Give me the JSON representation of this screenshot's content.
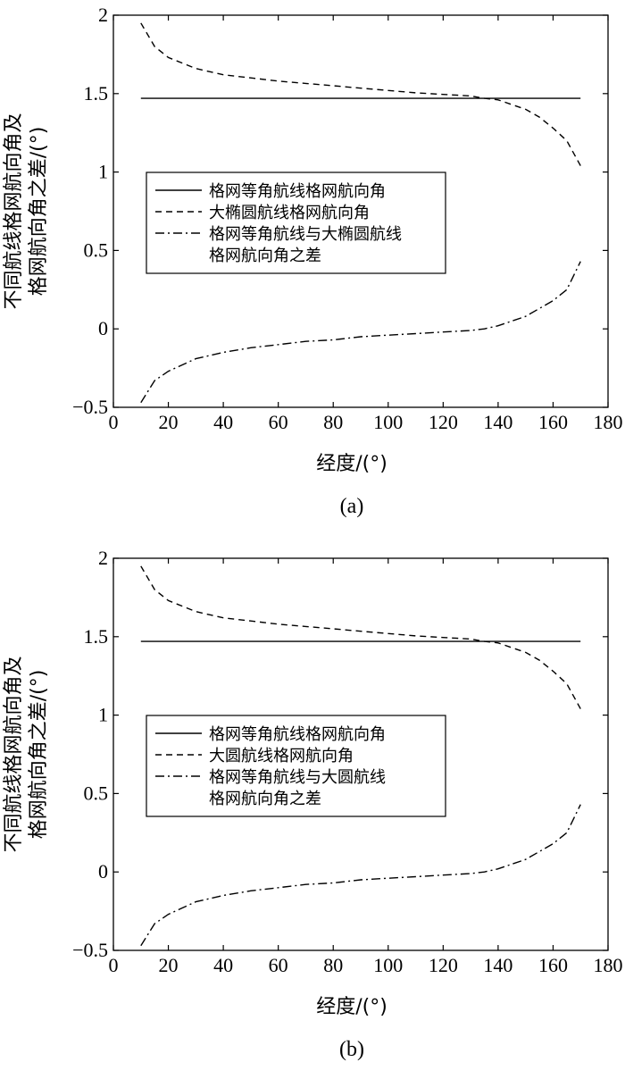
{
  "chart_data": [
    {
      "type": "line",
      "caption": "(a)",
      "xlabel": "经度/(°)",
      "ylabel": [
        "不同航线格网航向角及",
        "格网航向角之差/(°)"
      ],
      "xlim": [
        0,
        180
      ],
      "ylim": [
        -0.5,
        2
      ],
      "xticks": [
        0,
        20,
        40,
        60,
        80,
        100,
        120,
        140,
        160,
        180
      ],
      "yticks": [
        -0.5,
        0,
        0.5,
        1,
        1.5,
        2
      ],
      "ytick_labels": [
        "−0.5",
        "0",
        "0.5",
        "1",
        "1.5",
        "2"
      ],
      "grid": false,
      "legend_position": "center-left",
      "series": [
        {
          "name": [
            "格网等角航线格网航向角"
          ],
          "style": "solid",
          "x": [
            10,
            170
          ],
          "y": [
            1.47,
            1.47
          ]
        },
        {
          "name": [
            "大椭圆航线格网航向角"
          ],
          "style": "dashed",
          "x": [
            10,
            15,
            20,
            30,
            40,
            50,
            60,
            70,
            80,
            90,
            100,
            110,
            120,
            130,
            135,
            140,
            150,
            155,
            160,
            165,
            170
          ],
          "y": [
            1.95,
            1.8,
            1.73,
            1.66,
            1.62,
            1.6,
            1.58,
            1.565,
            1.55,
            1.535,
            1.52,
            1.505,
            1.495,
            1.485,
            1.47,
            1.46,
            1.4,
            1.35,
            1.28,
            1.2,
            1.04
          ]
        },
        {
          "name": [
            "格网等角航线与大椭圆航线",
            "格网航向角之差"
          ],
          "style": "dashdot",
          "x": [
            10,
            15,
            20,
            30,
            40,
            50,
            60,
            70,
            80,
            90,
            100,
            110,
            120,
            130,
            135,
            140,
            150,
            160,
            165,
            170
          ],
          "y": [
            -0.47,
            -0.33,
            -0.27,
            -0.19,
            -0.15,
            -0.12,
            -0.1,
            -0.08,
            -0.07,
            -0.05,
            -0.04,
            -0.03,
            -0.02,
            -0.01,
            0.0,
            0.02,
            0.08,
            0.18,
            0.25,
            0.43
          ]
        }
      ]
    },
    {
      "type": "line",
      "caption": "(b)",
      "xlabel": "经度/(°)",
      "ylabel": [
        "不同航线格网航向角及",
        "格网航向角之差/(°)"
      ],
      "xlim": [
        0,
        180
      ],
      "ylim": [
        -0.5,
        2
      ],
      "xticks": [
        0,
        20,
        40,
        60,
        80,
        100,
        120,
        140,
        160,
        180
      ],
      "yticks": [
        -0.5,
        0,
        0.5,
        1,
        1.5,
        2
      ],
      "ytick_labels": [
        "−0.5",
        "0",
        "0.5",
        "1",
        "1.5",
        "2"
      ],
      "grid": false,
      "legend_position": "center-left",
      "series": [
        {
          "name": [
            "格网等角航线格网航向角"
          ],
          "style": "solid",
          "x": [
            10,
            170
          ],
          "y": [
            1.47,
            1.47
          ]
        },
        {
          "name": [
            "大圆航线格网航向角"
          ],
          "style": "dashed",
          "x": [
            10,
            15,
            20,
            30,
            40,
            50,
            60,
            70,
            80,
            90,
            100,
            110,
            120,
            130,
            135,
            140,
            150,
            155,
            160,
            165,
            170
          ],
          "y": [
            1.95,
            1.8,
            1.73,
            1.66,
            1.62,
            1.6,
            1.58,
            1.565,
            1.55,
            1.535,
            1.52,
            1.505,
            1.495,
            1.485,
            1.47,
            1.46,
            1.4,
            1.35,
            1.28,
            1.2,
            1.04
          ]
        },
        {
          "name": [
            "格网等角航线与大圆航线",
            "格网航向角之差"
          ],
          "style": "dashdot",
          "x": [
            10,
            15,
            20,
            30,
            40,
            50,
            60,
            70,
            80,
            90,
            100,
            110,
            120,
            130,
            135,
            140,
            150,
            160,
            165,
            170
          ],
          "y": [
            -0.47,
            -0.33,
            -0.27,
            -0.19,
            -0.15,
            -0.12,
            -0.1,
            -0.08,
            -0.07,
            -0.05,
            -0.04,
            -0.03,
            -0.02,
            -0.01,
            0.0,
            0.02,
            0.08,
            0.18,
            0.25,
            0.43
          ]
        }
      ]
    }
  ]
}
